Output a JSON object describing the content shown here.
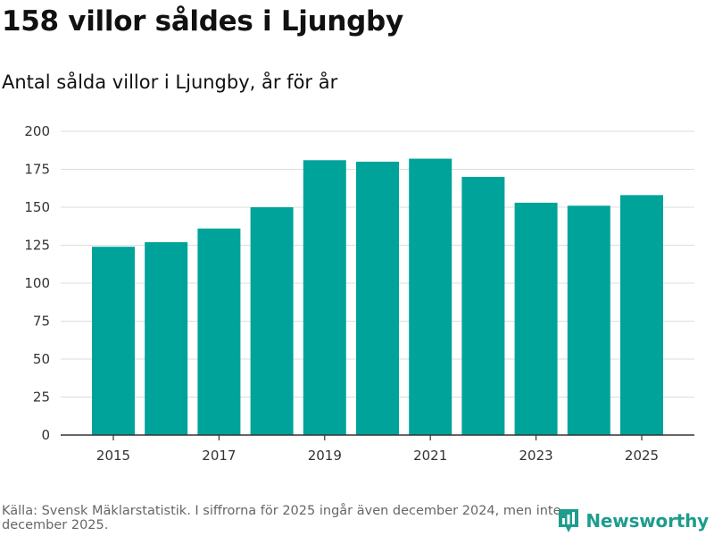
{
  "header": {
    "title": "158 villor såldes i Ljungby",
    "subtitle": "Antal sålda villor i Ljungby, år för år"
  },
  "footer": {
    "source": "Källa: Svensk Mäklarstatistik. I siffrorna för 2025 ingår även december 2024, men inte december 2025."
  },
  "brand": {
    "name": "Newsworthy",
    "logo_icon": "bar-chart-pin-icon"
  },
  "colors": {
    "bar": "#00a39a",
    "grid": "#dddddd",
    "axis": "#333333",
    "brand": "#1e9c8c"
  },
  "chart_data": {
    "type": "bar",
    "title": "158 villor såldes i Ljungby",
    "subtitle": "Antal sålda villor i Ljungby, år för år",
    "xlabel": "",
    "ylabel": "",
    "categories": [
      "2015",
      "2016",
      "2017",
      "2018",
      "2019",
      "2020",
      "2021",
      "2022",
      "2023",
      "2024",
      "2025"
    ],
    "values": [
      124,
      127,
      136,
      150,
      181,
      180,
      182,
      170,
      153,
      151,
      158
    ],
    "ylim": [
      0,
      200
    ],
    "yticks": [
      0,
      25,
      50,
      75,
      100,
      125,
      150,
      175,
      200
    ],
    "xtick_labels": [
      "2015",
      "2017",
      "2019",
      "2021",
      "2023",
      "2025"
    ],
    "grid": true,
    "legend": "none"
  }
}
